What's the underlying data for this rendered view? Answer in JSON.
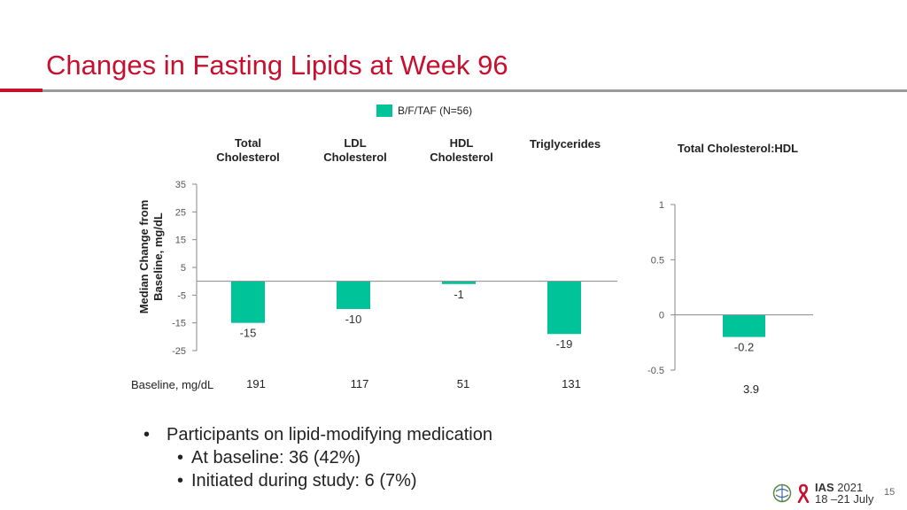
{
  "title": "Changes in Fasting Lipids at Week 96",
  "legend": {
    "label": "B/F/TAF (N=56)",
    "color": "#00c39a"
  },
  "chart_data": [
    {
      "type": "bar",
      "categories": [
        "Total\nCholesterol",
        "LDL\nCholesterol",
        "HDL\nCholesterol",
        "Triglycerides"
      ],
      "values": [
        -15,
        -10,
        -1,
        -19
      ],
      "value_labels": [
        "-15",
        "-10",
        "-1",
        "-19"
      ],
      "ylabel": "Median Change from\nBaseline, mg/dL",
      "ylim": [
        -25,
        35
      ],
      "yticks": [
        35,
        25,
        15,
        5,
        -5,
        -15,
        -25
      ],
      "ytick_labels": [
        "35",
        "25",
        "15",
        "5",
        "-5",
        "-15",
        "-25"
      ],
      "baseline_label": "Baseline, mg/dL",
      "baseline_values": [
        "191",
        "117",
        "51",
        "131"
      ],
      "color": "#00c39a"
    },
    {
      "type": "bar",
      "categories": [
        "Total Cholesterol:HDL"
      ],
      "values": [
        -0.2
      ],
      "value_labels": [
        "-0.2"
      ],
      "ylim": [
        -0.5,
        1
      ],
      "yticks": [
        1,
        0.5,
        0,
        -0.5
      ],
      "ytick_labels": [
        "1",
        "0.5",
        "0",
        "-0.5"
      ],
      "baseline_values": [
        "3.9"
      ],
      "color": "#00c39a"
    }
  ],
  "bullets": {
    "main": "Participants on lipid-modifying medication",
    "sub1": "At baseline: 36 (42%)",
    "sub2": "Initiated during study: 6 (7%)"
  },
  "logo": {
    "name": "IAS",
    "year": "2021",
    "dates": "18 –21 July"
  },
  "page_number": "15"
}
